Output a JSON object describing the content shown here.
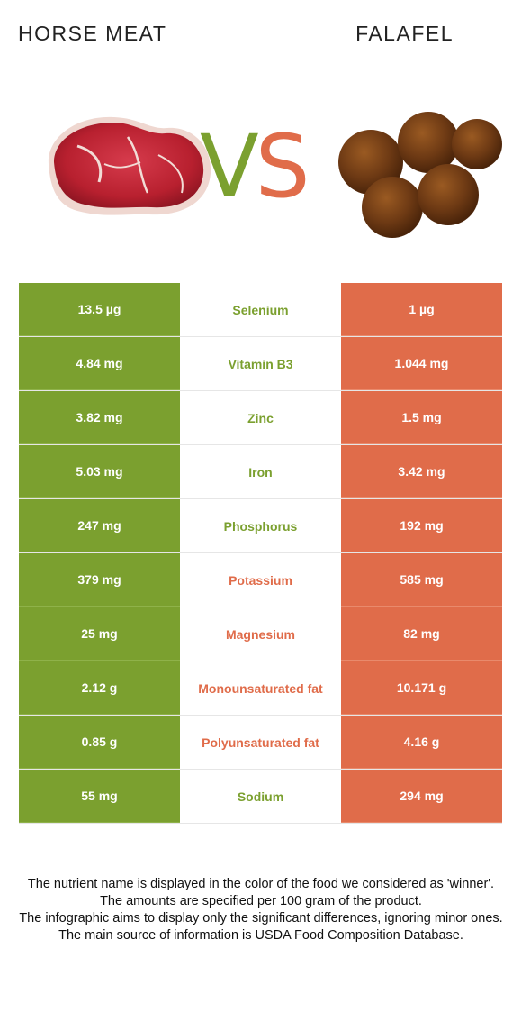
{
  "header": {
    "left_food": "HORSE MEAT",
    "right_food": "FALAFEL",
    "vs_v": "V",
    "vs_s": "S"
  },
  "colors": {
    "left_accent": "#7ba02f",
    "right_accent": "#e06c4a"
  },
  "rows": [
    {
      "left": "13.5 µg",
      "name": "Selenium",
      "right": "1 µg",
      "winner": "left"
    },
    {
      "left": "4.84 mg",
      "name": "Vitamin B3",
      "right": "1.044 mg",
      "winner": "left"
    },
    {
      "left": "3.82 mg",
      "name": "Zinc",
      "right": "1.5 mg",
      "winner": "left"
    },
    {
      "left": "5.03 mg",
      "name": "Iron",
      "right": "3.42 mg",
      "winner": "left"
    },
    {
      "left": "247 mg",
      "name": "Phosphorus",
      "right": "192 mg",
      "winner": "left"
    },
    {
      "left": "379 mg",
      "name": "Potassium",
      "right": "585 mg",
      "winner": "right"
    },
    {
      "left": "25 mg",
      "name": "Magnesium",
      "right": "82 mg",
      "winner": "right"
    },
    {
      "left": "2.12 g",
      "name": "Monounsaturated fat",
      "right": "10.171 g",
      "winner": "right"
    },
    {
      "left": "0.85 g",
      "name": "Polyunsaturated fat",
      "right": "4.16 g",
      "winner": "right"
    },
    {
      "left": "55 mg",
      "name": "Sodium",
      "right": "294 mg",
      "winner": "left"
    }
  ],
  "footer": {
    "line1": "The nutrient name is displayed in the color of the food we considered as 'winner'.",
    "line2": "The amounts are specified per 100 gram of the product.",
    "line3": "The infographic aims to display only the significant differences, ignoring minor ones.",
    "line4": "The main source of information is USDA Food Composition Database."
  }
}
